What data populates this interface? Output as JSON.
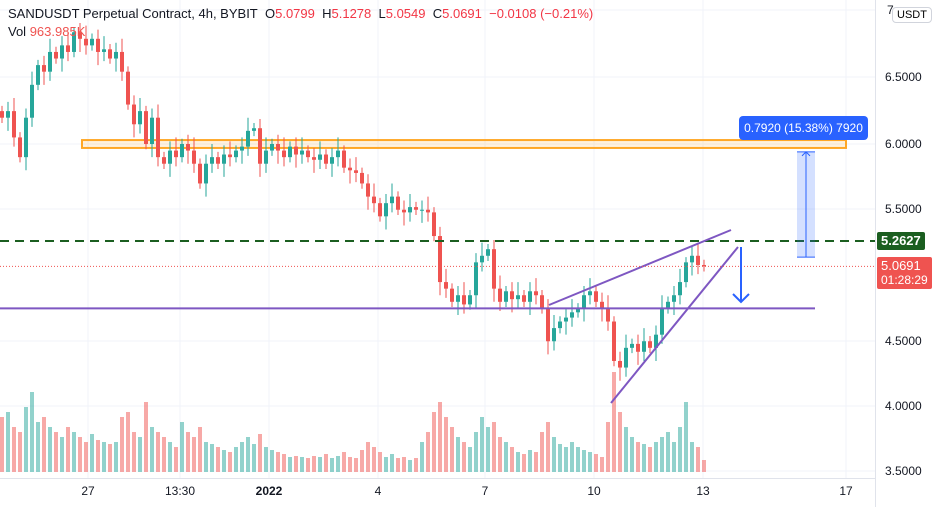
{
  "header": {
    "symbol": "SANDUSDT Perpetual Contract, 4h, BYBIT",
    "o_label": "O",
    "o": "5.0799",
    "h_label": "H",
    "h": "5.1278",
    "l_label": "L",
    "l": "5.0549",
    "c_label": "C",
    "c": "5.0691",
    "change": "−0.0108 (−0.21%)",
    "vol_label": "Vol",
    "vol": "963.985K"
  },
  "currency_button": "USDT",
  "measure_label": "0.7920 (15.38%) 7920",
  "tags": {
    "level": "5.2627",
    "last_price": "5.0691",
    "countdown": "01:28:29"
  },
  "colors": {
    "up": "#26a69a",
    "down": "#ef5350",
    "level": "#1b5e20",
    "channel": "#7e57c2",
    "zone": "#ffa726",
    "measure": "#2962ff"
  },
  "chart_data": {
    "type": "candlestick",
    "title": "SANDUSDT Perpetual Contract, 4h, BYBIT",
    "ylim": [
      3.45,
      7.0
    ],
    "y_ticks": [
      "7",
      "6.5000",
      "6.0000",
      "5.5000",
      "4.5000",
      "4.0000",
      "3.5000"
    ],
    "x_ticks": [
      "27",
      "13:30",
      "2022",
      "4",
      "7",
      "10",
      "13",
      "17"
    ],
    "closes": [
      6.2,
      6.25,
      6.05,
      5.9,
      6.2,
      6.45,
      6.6,
      6.55,
      6.7,
      6.65,
      6.75,
      6.7,
      6.85,
      6.8,
      6.75,
      6.8,
      6.7,
      6.72,
      6.65,
      6.7,
      6.55,
      6.3,
      6.15,
      6.25,
      6.0,
      6.2,
      5.9,
      5.85,
      5.95,
      5.9,
      6.0,
      5.95,
      5.85,
      5.7,
      5.85,
      5.9,
      5.85,
      5.92,
      5.9,
      5.95,
      5.98,
      6.1,
      6.12,
      5.85,
      5.95,
      6.0,
      5.95,
      5.9,
      5.98,
      5.92,
      5.95,
      5.9,
      5.88,
      5.92,
      5.85,
      5.9,
      5.95,
      5.82,
      5.8,
      5.78,
      5.7,
      5.6,
      5.55,
      5.45,
      5.55,
      5.6,
      5.5,
      5.48,
      5.52,
      5.5,
      5.5,
      5.48,
      5.3,
      4.95,
      4.9,
      4.8,
      4.85,
      4.78,
      4.85,
      5.1,
      5.15,
      5.2,
      4.9,
      4.8,
      4.88,
      4.82,
      4.85,
      4.8,
      4.88,
      4.85,
      4.75,
      4.5,
      4.6,
      4.65,
      4.68,
      4.72,
      4.75,
      4.85,
      4.88,
      4.8,
      4.75,
      4.65,
      4.35,
      4.3,
      4.45,
      4.48,
      4.42,
      4.5,
      4.45,
      4.55,
      4.75,
      4.8,
      4.85,
      4.95,
      5.1,
      5.15,
      5.08,
      5.07
    ],
    "volumes": [
      55,
      60,
      45,
      40,
      65,
      80,
      50,
      55,
      45,
      40,
      35,
      45,
      40,
      35,
      30,
      38,
      32,
      30,
      28,
      30,
      55,
      60,
      40,
      35,
      70,
      45,
      40,
      35,
      30,
      25,
      50,
      40,
      35,
      45,
      30,
      28,
      25,
      22,
      20,
      25,
      30,
      35,
      28,
      38,
      25,
      22,
      20,
      18,
      15,
      16,
      15,
      14,
      16,
      15,
      18,
      14,
      16,
      20,
      15,
      14,
      22,
      30,
      25,
      20,
      15,
      18,
      14,
      15,
      12,
      14,
      30,
      40,
      60,
      70,
      55,
      45,
      35,
      30,
      25,
      40,
      55,
      45,
      50,
      35,
      30,
      25,
      20,
      18,
      22,
      20,
      40,
      50,
      35,
      28,
      25,
      30,
      25,
      22,
      20,
      18,
      15,
      50,
      100,
      60,
      45,
      35,
      30,
      28,
      25,
      30,
      35,
      40,
      30,
      45,
      70,
      30,
      25,
      12
    ],
    "levels": {
      "resistance_zone": [
        5.97,
        6.03
      ],
      "horizontal_dashed": 5.2627,
      "support": 4.75,
      "last_price": 5.0691
    },
    "measure": {
      "from": 5.14,
      "to": 5.94,
      "delta": 0.792,
      "percent": 15.38
    }
  }
}
